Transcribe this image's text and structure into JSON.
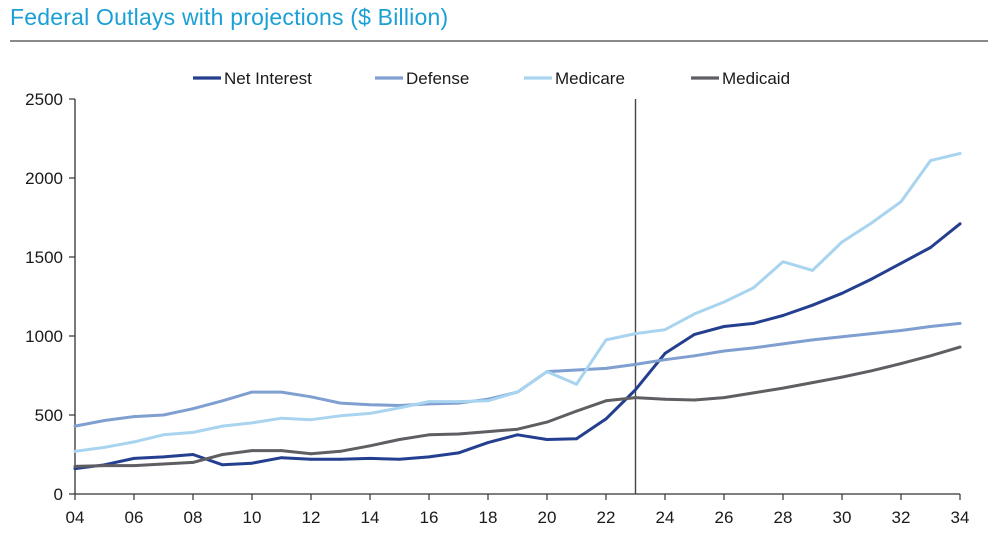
{
  "title": "Federal Outlays with projections ($ Billion)",
  "chart_data": {
    "type": "line",
    "title": "Federal Outlays with projections ($ Billion)",
    "xlabel": "",
    "ylabel": "",
    "xlim": [
      2004,
      2034
    ],
    "ylim": [
      0,
      2500
    ],
    "x_ticks": [
      2004,
      2006,
      2008,
      2010,
      2012,
      2014,
      2016,
      2018,
      2020,
      2022,
      2024,
      2026,
      2028,
      2030,
      2032,
      2034
    ],
    "x_tick_labels": [
      "04",
      "06",
      "08",
      "10",
      "12",
      "14",
      "16",
      "18",
      "20",
      "22",
      "24",
      "26",
      "28",
      "30",
      "32",
      "34"
    ],
    "y_ticks": [
      0,
      500,
      1000,
      1500,
      2000,
      2500
    ],
    "y_tick_labels": [
      "0",
      "500",
      "1000",
      "1500",
      "2000",
      "2500"
    ],
    "grid": false,
    "legend_position": "top",
    "vertical_marker_x": 2023,
    "x": [
      2004,
      2005,
      2006,
      2007,
      2008,
      2009,
      2010,
      2011,
      2012,
      2013,
      2014,
      2015,
      2016,
      2017,
      2018,
      2019,
      2020,
      2021,
      2022,
      2023,
      2024,
      2025,
      2026,
      2027,
      2028,
      2029,
      2030,
      2031,
      2032,
      2033,
      2034
    ],
    "series": [
      {
        "name": "Net Interest",
        "color": "#243f8f",
        "values": [
          160,
          185,
          225,
          235,
          250,
          185,
          195,
          230,
          220,
          220,
          225,
          220,
          235,
          260,
          325,
          375,
          345,
          350,
          475,
          660,
          890,
          1010,
          1060,
          1080,
          1130,
          1195,
          1270,
          1360,
          1460,
          1560,
          1710
        ]
      },
      {
        "name": "Defense",
        "color": "#7f9fd1",
        "values": [
          430,
          465,
          490,
          500,
          540,
          590,
          645,
          645,
          615,
          575,
          565,
          560,
          570,
          575,
          600,
          645,
          775,
          785,
          795,
          820,
          850,
          875,
          905,
          925,
          950,
          975,
          995,
          1015,
          1035,
          1060,
          1080
        ]
      },
      {
        "name": "Medicare",
        "color": "#a9d4ef",
        "values": [
          270,
          295,
          330,
          375,
          390,
          430,
          450,
          480,
          470,
          495,
          510,
          545,
          585,
          585,
          590,
          645,
          775,
          695,
          975,
          1015,
          1040,
          1140,
          1215,
          1305,
          1470,
          1415,
          1595,
          1715,
          1850,
          2110,
          2155
        ]
      },
      {
        "name": "Medicaid",
        "color": "#5f5f63",
        "values": [
          175,
          180,
          180,
          190,
          200,
          250,
          275,
          275,
          255,
          270,
          305,
          345,
          375,
          380,
          395,
          410,
          455,
          525,
          590,
          610,
          600,
          595,
          610,
          640,
          670,
          705,
          740,
          780,
          825,
          875,
          930
        ]
      }
    ]
  }
}
